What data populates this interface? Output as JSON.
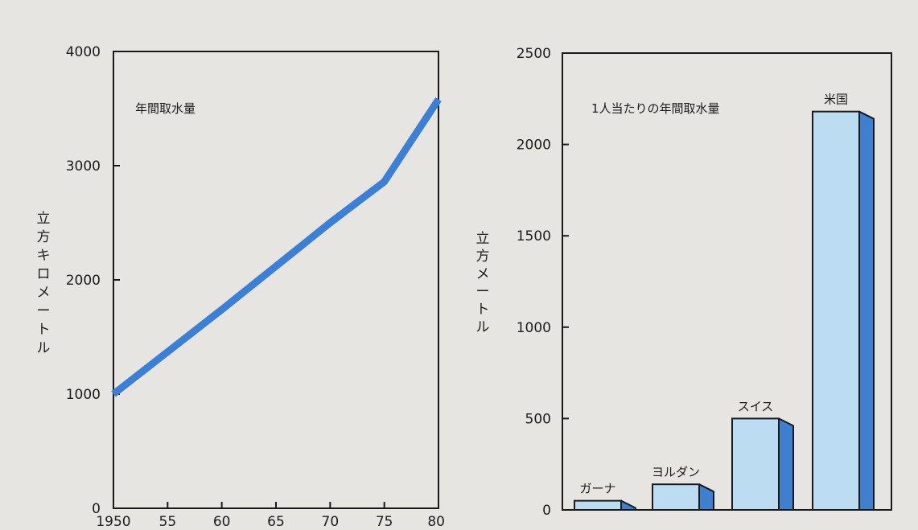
{
  "chart_data": [
    {
      "type": "line",
      "title": "年間取水量",
      "ylabel": "立方キロメートル",
      "xlabel": "",
      "x": [
        1950,
        1955,
        1960,
        1965,
        1970,
        1975,
        1980
      ],
      "x_tick_labels": [
        "1950",
        "55",
        "60",
        "65",
        "70",
        "75",
        "80"
      ],
      "series": [
        {
          "values": [
            1000,
            1370,
            1740,
            2120,
            2500,
            2860,
            3580
          ]
        }
      ],
      "xlim": [
        1950,
        1980
      ],
      "ylim": [
        0,
        4000
      ],
      "y_ticks": [
        0,
        1000,
        2000,
        3000,
        4000
      ],
      "grid": false,
      "colors": {
        "line": "#3b7fd6"
      }
    },
    {
      "type": "bar",
      "title": "1人当たりの年間取水量",
      "ylabel": "立方メートル",
      "xlabel": "",
      "categories": [
        "ガーナ",
        "ヨルダン",
        "スイス",
        "米国"
      ],
      "values": [
        50,
        140,
        500,
        2180
      ],
      "ylim": [
        0,
        2500
      ],
      "y_ticks": [
        0,
        500,
        1000,
        1500,
        2000,
        2500
      ],
      "grid": false,
      "colors": {
        "face": "#bcdcf1",
        "side": "#3f7fd0",
        "edge": "#1a1a1a"
      }
    }
  ]
}
